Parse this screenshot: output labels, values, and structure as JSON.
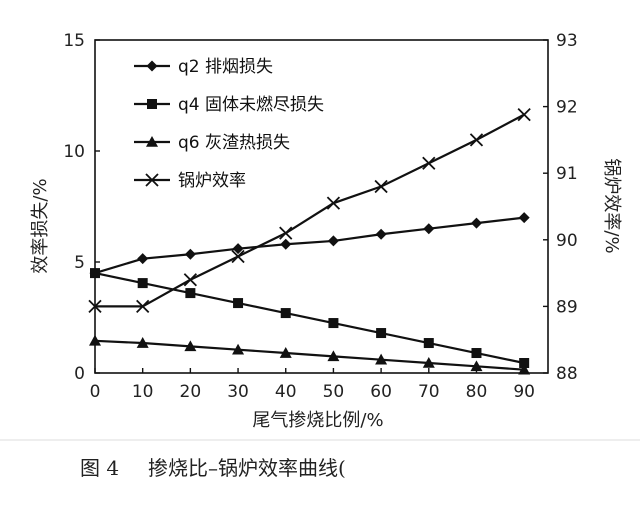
{
  "chart_data": {
    "type": "line",
    "x": [
      0,
      10,
      20,
      30,
      40,
      50,
      60,
      70,
      80,
      90
    ],
    "xlabel": "尾气掺烧比例/%",
    "xlim": [
      0,
      95
    ],
    "xticks": [
      0,
      10,
      20,
      30,
      40,
      50,
      60,
      70,
      80,
      90
    ],
    "ylabel_left": "效率损失/%",
    "ylim_left": [
      0,
      15
    ],
    "yticks_left": [
      0,
      5,
      10,
      15
    ],
    "ylabel_right": "锅炉效率/%",
    "ylim_right": [
      88,
      93
    ],
    "yticks_right": [
      88,
      89,
      90,
      91,
      92,
      93
    ],
    "legend_position": "top-left",
    "grid": false,
    "series": [
      {
        "name": "q2 排烟损失",
        "axis": "left",
        "marker": "diamond",
        "values": [
          4.5,
          5.15,
          5.35,
          5.6,
          5.8,
          5.95,
          6.25,
          6.5,
          6.75,
          7.0
        ]
      },
      {
        "name": "q4 固体未燃尽损失",
        "axis": "left",
        "marker": "square",
        "values": [
          4.5,
          4.05,
          3.6,
          3.15,
          2.7,
          2.25,
          1.8,
          1.35,
          0.9,
          0.45
        ]
      },
      {
        "name": "q6 灰渣热损失",
        "axis": "left",
        "marker": "triangle",
        "values": [
          1.45,
          1.35,
          1.2,
          1.05,
          0.9,
          0.75,
          0.6,
          0.45,
          0.3,
          0.15
        ]
      },
      {
        "name": "锅炉效率",
        "axis": "right",
        "marker": "x",
        "values": [
          89.0,
          89.0,
          89.4,
          89.75,
          90.1,
          90.55,
          90.8,
          91.15,
          91.5,
          91.88
        ]
      }
    ]
  },
  "caption": {
    "figure_number": "图 4",
    "title": "掺烧比–锅炉效率曲线("
  }
}
